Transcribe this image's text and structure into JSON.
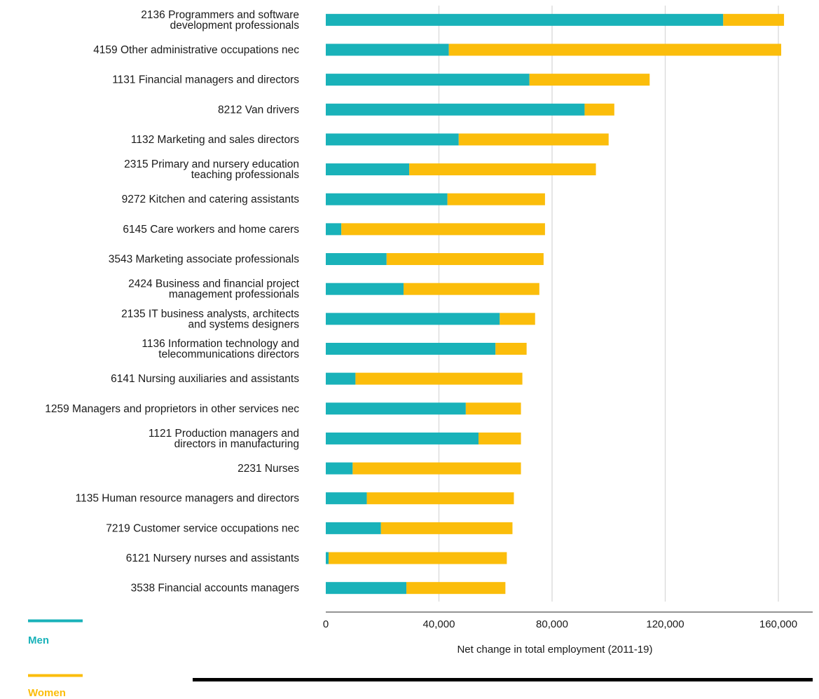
{
  "chart_data": {
    "type": "bar",
    "orientation": "horizontal",
    "stacked": true,
    "categories": [
      [
        "2136 Programmers and software",
        "development professionals"
      ],
      [
        "4159 Other administrative occupations nec"
      ],
      [
        "1131 Financial managers and directors"
      ],
      [
        "8212 Van drivers"
      ],
      [
        "1132 Marketing and sales directors"
      ],
      [
        "2315 Primary and nursery education",
        "teaching professionals"
      ],
      [
        "9272 Kitchen and catering assistants"
      ],
      [
        "6145 Care workers and home carers"
      ],
      [
        "3543 Marketing associate professionals"
      ],
      [
        "2424 Business and financial project",
        "management professionals"
      ],
      [
        "2135 IT business analysts, architects",
        "and systems designers"
      ],
      [
        "1136 Information technology and",
        "telecommunications directors"
      ],
      [
        "6141 Nursing auxiliaries and assistants"
      ],
      [
        "1259 Managers and proprietors in other services nec"
      ],
      [
        "1121 Production managers and",
        "directors in manufacturing"
      ],
      [
        "2231  Nurses"
      ],
      [
        "1135 Human resource managers and directors"
      ],
      [
        "7219 Customer service occupations nec"
      ],
      [
        "6121 Nursery nurses and assistants"
      ],
      [
        "3538 Financial accounts managers"
      ]
    ],
    "series": [
      {
        "name": "Men",
        "color": "#19b2b9",
        "values": [
          140500,
          43500,
          72000,
          91500,
          47000,
          29500,
          43000,
          5500,
          21500,
          27500,
          61500,
          60000,
          10500,
          49500,
          54000,
          9500,
          14500,
          19500,
          1000,
          28500
        ]
      },
      {
        "name": "Women",
        "color": "#fbbd0b",
        "values": [
          21500,
          117500,
          42500,
          10500,
          53000,
          66000,
          34500,
          72000,
          55500,
          48000,
          12500,
          11000,
          59000,
          19500,
          15000,
          59500,
          52000,
          46500,
          63000,
          35000
        ]
      }
    ],
    "xlabel": "Net change in total employment (2011-19)",
    "xlim": [
      0,
      170000
    ],
    "xticks": [
      {
        "value": 0,
        "label": "0"
      },
      {
        "value": 40000,
        "label": "40,000"
      },
      {
        "value": 80000,
        "label": "80,000"
      },
      {
        "value": 120000,
        "label": "120,000"
      },
      {
        "value": 160000,
        "label": "160,000"
      }
    ],
    "grid": true,
    "legend_position": "bottom-left"
  }
}
